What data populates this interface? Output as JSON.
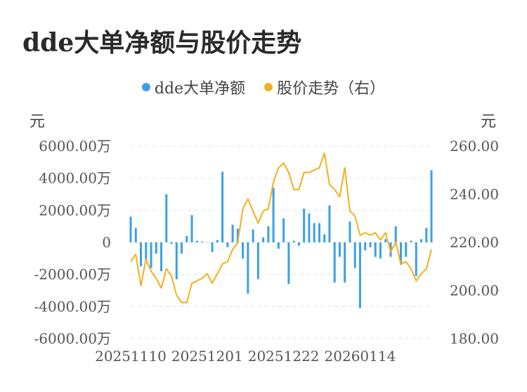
{
  "chart_data": {
    "type": "bar+line",
    "title": "dde大单净额与股价走势",
    "left_unit": "元",
    "right_unit": "元",
    "legend": [
      {
        "name": "dde大单净额",
        "color": "#3aa0e8"
      },
      {
        "name": "股价走势（右）",
        "color": "#f2b01e"
      }
    ],
    "y_left": {
      "min": -6000,
      "max": 6000,
      "ticks": [
        "6000.00万",
        "4000.00万",
        "2000.00万",
        "0",
        "-2000.00万",
        "-4000.00万",
        "-6000.00万"
      ]
    },
    "y_right": {
      "min": 180,
      "max": 260,
      "ticks": [
        "260.00",
        "240.00",
        "220.00",
        "200.00",
        "180.00"
      ]
    },
    "x_ticks": [
      {
        "label": "20251110",
        "index": 0
      },
      {
        "label": "20251201",
        "index": 15
      },
      {
        "label": "20251222",
        "index": 30
      },
      {
        "label": "20260114",
        "index": 45
      }
    ],
    "bar_values": [
      1600,
      900,
      -1500,
      -1200,
      -1600,
      -700,
      -1800,
      3000,
      -100,
      -2300,
      -700,
      400,
      1700,
      100,
      50,
      0,
      -600,
      150,
      4400,
      -300,
      1100,
      850,
      -1000,
      -3200,
      800,
      -2300,
      300,
      1000,
      3400,
      -400,
      1500,
      -2600,
      100,
      -200,
      2100,
      1800,
      1200,
      1200,
      500,
      2300,
      -2500,
      -900,
      -2500,
      1300,
      -1600,
      -4100,
      -500,
      -300,
      -900,
      -1000,
      200,
      -900,
      1000,
      -1400,
      -900,
      100,
      -2100,
      200,
      900,
      4500
    ],
    "price_values": [
      212,
      215,
      202,
      213,
      208,
      205,
      201,
      209,
      206,
      198,
      195,
      195,
      203,
      204,
      205,
      207,
      203,
      207,
      211,
      212,
      217,
      220,
      234,
      238,
      233,
      228,
      233,
      234,
      245,
      251,
      253,
      249,
      242,
      242,
      249,
      249,
      250,
      251,
      257,
      244,
      242,
      239,
      251,
      233,
      231,
      223,
      224,
      223,
      224,
      221,
      224,
      216,
      220,
      211,
      212,
      209,
      204,
      207,
      209,
      217
    ]
  }
}
